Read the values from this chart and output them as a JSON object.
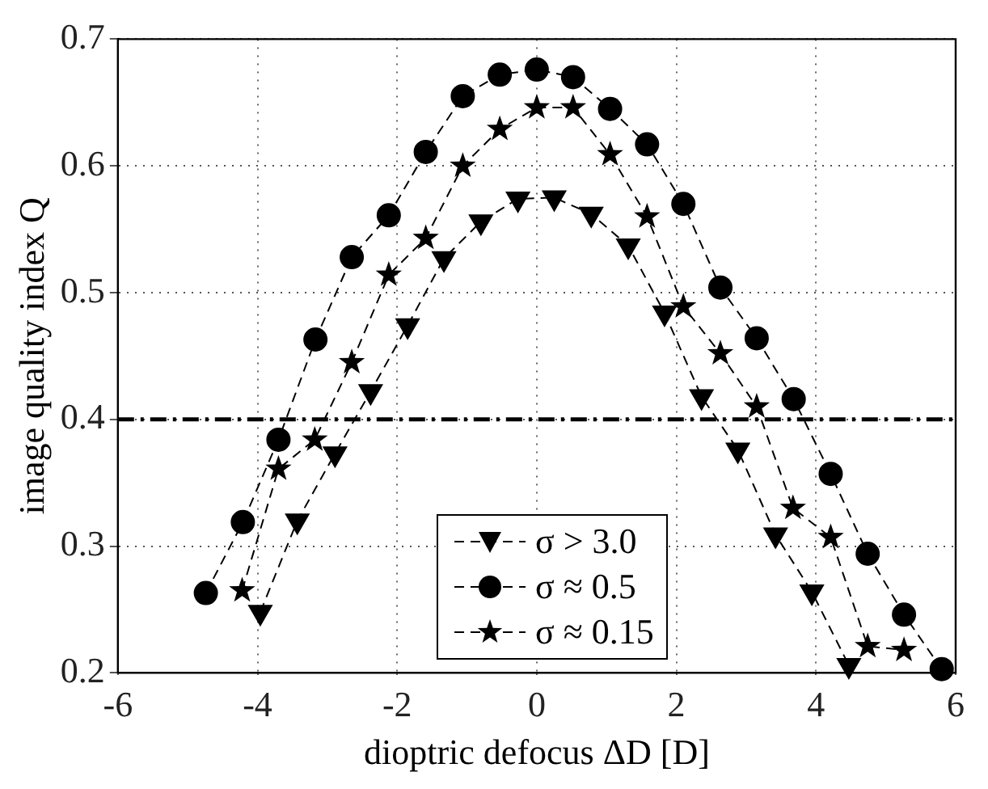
{
  "chart_data": {
    "type": "line",
    "xlabel": "dioptric defocus ΔD [D]",
    "ylabel": "image quality index Q",
    "xlim": [
      -6,
      6
    ],
    "xticks": [
      -6,
      -4,
      -2,
      0,
      2,
      4,
      6
    ],
    "ylim": [
      0.2,
      0.7
    ],
    "yticks": [
      0.2,
      0.3,
      0.4,
      0.5,
      0.6,
      0.7
    ],
    "grid": true,
    "legend": "bottom",
    "line_style": "dashed",
    "ref_lines": [
      {
        "axis": "y",
        "value": 0.4,
        "color": "#000000",
        "line_style": "dashdot"
      }
    ],
    "series": [
      {
        "name": "σ > 3.0",
        "color": "#000000",
        "marker": "triangle",
        "x": [
          -3.96,
          -3.43,
          -2.89,
          -2.38,
          -1.85,
          -1.33,
          -0.8,
          -0.27,
          0.25,
          0.78,
          1.31,
          1.83,
          2.36,
          2.88,
          3.42,
          3.94,
          4.47
        ],
        "values": [
          0.248,
          0.32,
          0.373,
          0.422,
          0.474,
          0.527,
          0.556,
          0.574,
          0.575,
          0.562,
          0.537,
          0.484,
          0.418,
          0.376,
          0.309,
          0.264,
          0.206
        ]
      },
      {
        "name": "σ ≈ 0.5",
        "color": "#000000",
        "marker": "circle",
        "x": [
          -4.74,
          -4.21,
          -3.7,
          -3.17,
          -2.65,
          -2.12,
          -1.59,
          -1.06,
          -0.53,
          0,
          0.52,
          1.05,
          1.58,
          2.1,
          2.63,
          3.15,
          3.68,
          4.21,
          4.74,
          5.26,
          5.8
        ],
        "values": [
          0.263,
          0.319,
          0.384,
          0.463,
          0.528,
          0.561,
          0.611,
          0.655,
          0.672,
          0.676,
          0.67,
          0.645,
          0.617,
          0.57,
          0.504,
          0.464,
          0.416,
          0.357,
          0.294,
          0.246,
          0.203
        ]
      },
      {
        "name": "σ ≈ 0.15",
        "color": "#000000",
        "marker": "star",
        "x": [
          -4.22,
          -3.7,
          -3.18,
          -2.65,
          -2.12,
          -1.59,
          -1.06,
          -0.53,
          0,
          0.52,
          1.05,
          1.58,
          2.1,
          2.63,
          3.15,
          3.67,
          4.21,
          4.74,
          5.26
        ],
        "values": [
          0.265,
          0.361,
          0.384,
          0.445,
          0.514,
          0.543,
          0.6,
          0.629,
          0.646,
          0.646,
          0.609,
          0.56,
          0.489,
          0.452,
          0.41,
          0.33,
          0.307,
          0.221,
          0.218
        ]
      }
    ]
  }
}
